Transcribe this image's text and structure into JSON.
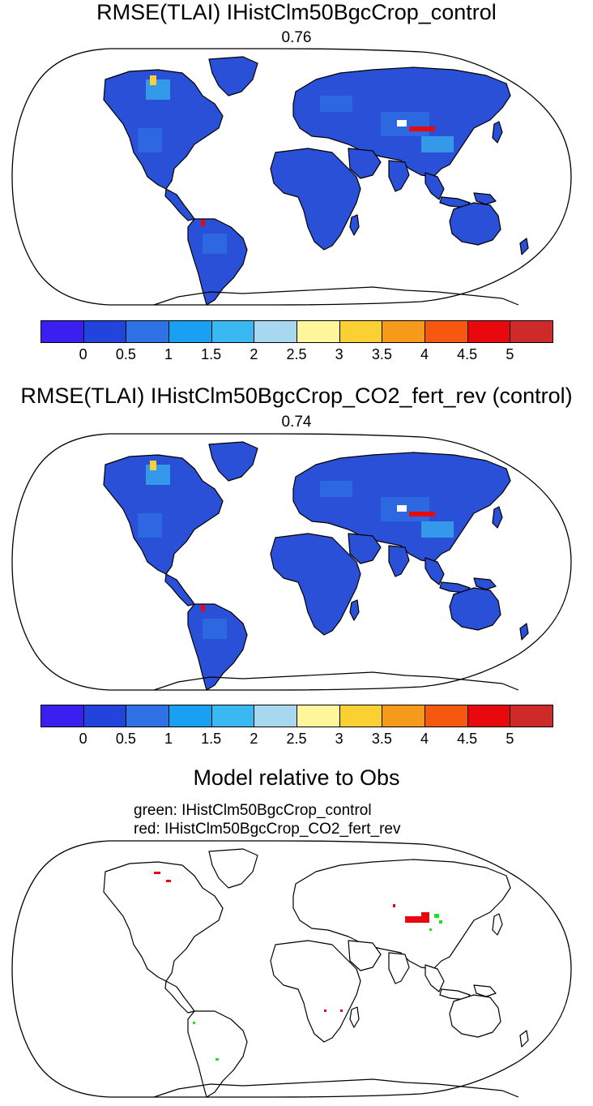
{
  "panel1": {
    "title": "RMSE(TLAI) IHistClm50BgcCrop_control",
    "value": "0.76"
  },
  "panel2": {
    "title": "RMSE(TLAI) IHistClm50BgcCrop_CO2_fert_rev (control)",
    "value": "0.74"
  },
  "panel3": {
    "title": "Model relative to Obs",
    "legend_green": "green: IHistClm50BgcCrop_control",
    "legend_red": "red: IHistClm50BgcCrop_CO2_fert_rev"
  },
  "colorbar": {
    "colors": [
      "#3a1ff0",
      "#2244dd",
      "#2f72e6",
      "#1aa0f2",
      "#3ab8f2",
      "#a8d8f0",
      "#fff59a",
      "#fbd033",
      "#f79a1c",
      "#f5580e",
      "#e8090e",
      "#cf2a2a"
    ],
    "labels": [
      "0",
      "0.5",
      "1",
      "1.5",
      "2",
      "2.5",
      "3",
      "3.5",
      "4",
      "4.5",
      "5"
    ]
  },
  "colors": {
    "land_fill": "#2a50d8",
    "hotspot": "#e8090e",
    "green_marker": "#22dd22",
    "red_marker": "#e8090e"
  }
}
